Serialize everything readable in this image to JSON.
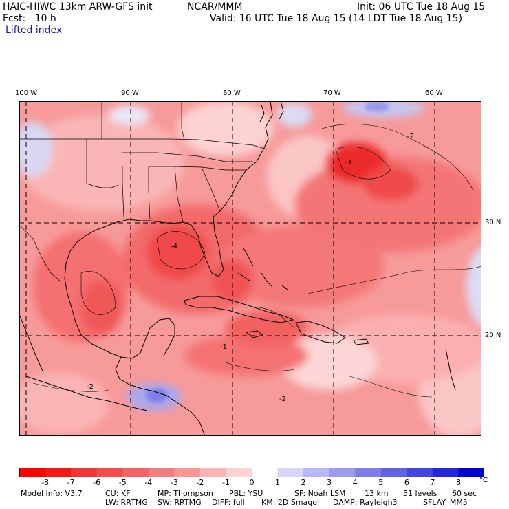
{
  "header": {
    "title": "HAIC-HIWC 13km ARW-GFS init",
    "org": "NCAR/MMM",
    "init": "Init: 06 UTC Tue 18 Aug 15",
    "fcst": "Fcst:   10 h",
    "valid": "Valid: 16 UTC Tue 18 Aug 15 (14 LDT Tue 18 Aug 15)",
    "field": "Lifted index"
  },
  "map": {
    "lon_labels": [
      "100 W",
      "90 W",
      "80 W",
      "70 W",
      "60 W"
    ],
    "lat_labels": [
      "30 N",
      "20 N"
    ],
    "contour_labels": [
      "-2",
      "-4",
      "-1",
      "-2",
      "-2",
      "-1"
    ],
    "colors": {
      "land_line": "#000000",
      "strong_unstable": "#ee1111",
      "mid_unstable": "#f46a6a",
      "weak_unstable": "#fbc6c6",
      "stable": "#c9c9f4"
    }
  },
  "legend": {
    "colors": [
      "#ff0000",
      "#f51616",
      "#f43434",
      "#f44c4c",
      "#f46464",
      "#f47c7c",
      "#f89696",
      "#fab4b4",
      "#fcd2d2",
      "#ffffff",
      "#d6d6f6",
      "#b8b8f2",
      "#9c9cee",
      "#7e7eea",
      "#6262e6",
      "#4444e2",
      "#2626de",
      "#0000d8"
    ],
    "ticks": [
      "-8",
      "-7",
      "-6",
      "-5",
      "-4",
      "-3",
      "-2",
      "-1",
      "0",
      "1",
      "2",
      "3",
      "4",
      "5",
      "6",
      "7",
      "8"
    ],
    "unit": "°C"
  },
  "model_info": {
    "line1": [
      "Model Info: V3.7",
      "CU: KF",
      "MP: Thompson",
      "PBL: YSU",
      "SF: Noah LSM",
      "13 km",
      "51 levels",
      "60 sec"
    ],
    "line2": [
      "LW: RRTMG",
      "SW: RRTMG",
      "DIFF: full",
      "KM: 2D Smagor",
      "DAMP: Rayleigh3",
      "SFLAY: MM5"
    ]
  }
}
